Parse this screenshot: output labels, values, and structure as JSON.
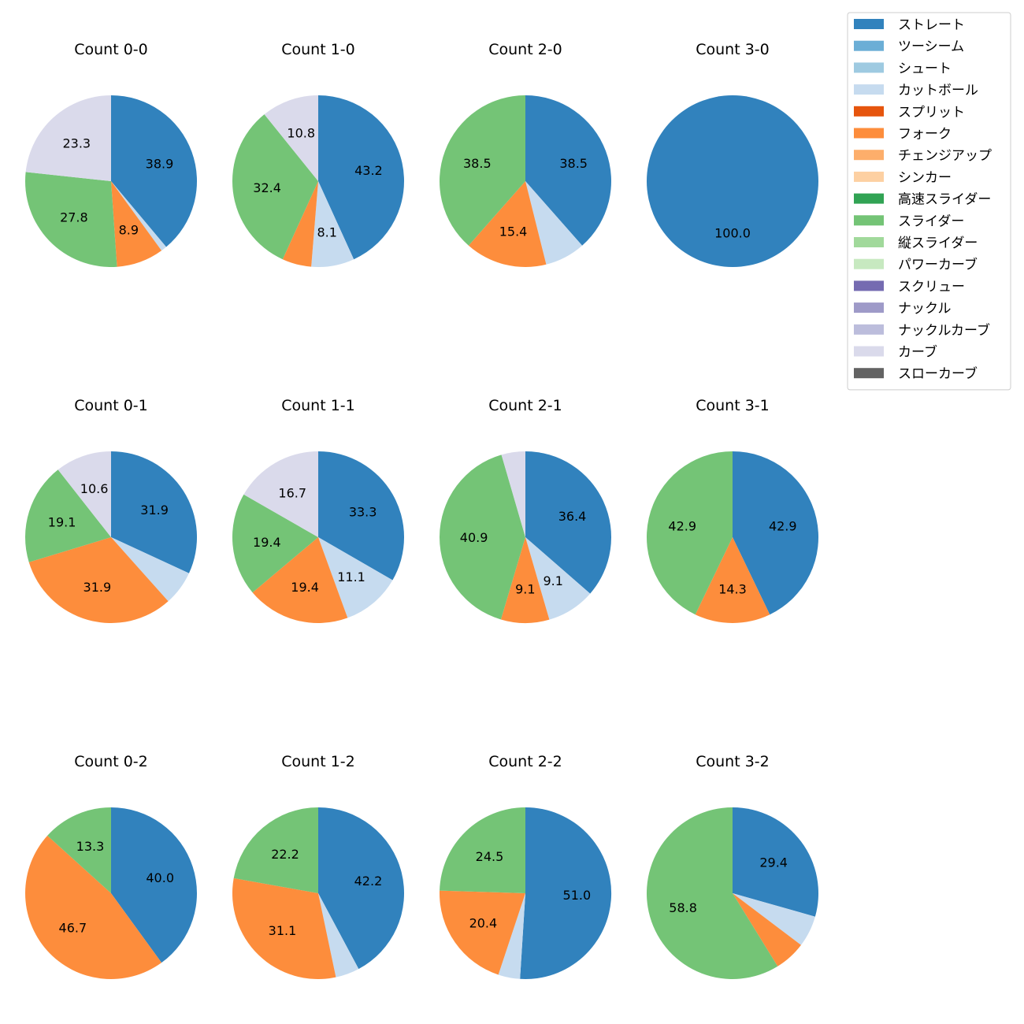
{
  "chart_data": {
    "type": "pie",
    "legend": {
      "placement": "top-right",
      "entries": [
        {
          "name": "ストレート",
          "color": "#3182bd"
        },
        {
          "name": "ツーシーム",
          "color": "#6baed6"
        },
        {
          "name": "シュート",
          "color": "#9ecae1"
        },
        {
          "name": "カットボール",
          "color": "#c6dbef"
        },
        {
          "name": "スプリット",
          "color": "#e6550d"
        },
        {
          "name": "フォーク",
          "color": "#fd8d3c"
        },
        {
          "name": "チェンジアップ",
          "color": "#fdae6b"
        },
        {
          "name": "シンカー",
          "color": "#fdd0a2"
        },
        {
          "name": "高速スライダー",
          "color": "#31a354"
        },
        {
          "name": "スライダー",
          "color": "#74c476"
        },
        {
          "name": "縦スライダー",
          "color": "#a1d99b"
        },
        {
          "name": "パワーカーブ",
          "color": "#c7e9c0"
        },
        {
          "name": "スクリュー",
          "color": "#756bb1"
        },
        {
          "name": "ナックル",
          "color": "#9e9ac8"
        },
        {
          "name": "ナックルカーブ",
          "color": "#bcbddc"
        },
        {
          "name": "カーブ",
          "color": "#dadaeb"
        },
        {
          "name": "スローカーブ",
          "color": "#636363"
        }
      ]
    },
    "pies": [
      {
        "title": "Count 0-0",
        "slices": [
          {
            "name": "ストレート",
            "value": 38.9,
            "label": "38.9"
          },
          {
            "name": "カットボール",
            "value": 1.1,
            "label": ""
          },
          {
            "name": "フォーク",
            "value": 8.9,
            "label": "8.9"
          },
          {
            "name": "スライダー",
            "value": 27.8,
            "label": "27.8"
          },
          {
            "name": "カーブ",
            "value": 23.3,
            "label": "23.3"
          }
        ]
      },
      {
        "title": "Count 1-0",
        "slices": [
          {
            "name": "ストレート",
            "value": 43.2,
            "label": "43.2"
          },
          {
            "name": "カットボール",
            "value": 8.1,
            "label": "8.1"
          },
          {
            "name": "フォーク",
            "value": 5.5,
            "label": ""
          },
          {
            "name": "スライダー",
            "value": 32.4,
            "label": "32.4"
          },
          {
            "name": "カーブ",
            "value": 10.8,
            "label": "10.8"
          }
        ]
      },
      {
        "title": "Count 2-0",
        "slices": [
          {
            "name": "ストレート",
            "value": 38.5,
            "label": "38.5"
          },
          {
            "name": "カットボール",
            "value": 7.6,
            "label": ""
          },
          {
            "name": "フォーク",
            "value": 15.4,
            "label": "15.4"
          },
          {
            "name": "スライダー",
            "value": 38.5,
            "label": "38.5"
          }
        ]
      },
      {
        "title": "Count 3-0",
        "slices": [
          {
            "name": "ストレート",
            "value": 100.0,
            "label": "100.0"
          }
        ]
      },
      {
        "title": "Count 0-1",
        "slices": [
          {
            "name": "ストレート",
            "value": 31.9,
            "label": "31.9"
          },
          {
            "name": "カットボール",
            "value": 6.5,
            "label": ""
          },
          {
            "name": "フォーク",
            "value": 31.9,
            "label": "31.9"
          },
          {
            "name": "スライダー",
            "value": 19.1,
            "label": "19.1"
          },
          {
            "name": "カーブ",
            "value": 10.6,
            "label": "10.6"
          }
        ]
      },
      {
        "title": "Count 1-1",
        "slices": [
          {
            "name": "ストレート",
            "value": 33.3,
            "label": "33.3"
          },
          {
            "name": "カットボール",
            "value": 11.1,
            "label": "11.1"
          },
          {
            "name": "フォーク",
            "value": 19.4,
            "label": "19.4"
          },
          {
            "name": "スライダー",
            "value": 19.4,
            "label": "19.4"
          },
          {
            "name": "カーブ",
            "value": 16.7,
            "label": "16.7"
          }
        ]
      },
      {
        "title": "Count 2-1",
        "slices": [
          {
            "name": "ストレート",
            "value": 36.4,
            "label": "36.4"
          },
          {
            "name": "カットボール",
            "value": 9.1,
            "label": "9.1"
          },
          {
            "name": "フォーク",
            "value": 9.1,
            "label": "9.1"
          },
          {
            "name": "スライダー",
            "value": 40.9,
            "label": "40.9"
          },
          {
            "name": "カーブ",
            "value": 4.5,
            "label": ""
          }
        ]
      },
      {
        "title": "Count 3-1",
        "slices": [
          {
            "name": "ストレート",
            "value": 42.9,
            "label": "42.9"
          },
          {
            "name": "フォーク",
            "value": 14.3,
            "label": "14.3"
          },
          {
            "name": "スライダー",
            "value": 42.9,
            "label": "42.9"
          }
        ]
      },
      {
        "title": "Count 0-2",
        "slices": [
          {
            "name": "ストレート",
            "value": 40.0,
            "label": "40.0"
          },
          {
            "name": "フォーク",
            "value": 46.7,
            "label": "46.7"
          },
          {
            "name": "スライダー",
            "value": 13.3,
            "label": "13.3"
          }
        ]
      },
      {
        "title": "Count 1-2",
        "slices": [
          {
            "name": "ストレート",
            "value": 42.2,
            "label": "42.2"
          },
          {
            "name": "カットボール",
            "value": 4.5,
            "label": ""
          },
          {
            "name": "フォーク",
            "value": 31.1,
            "label": "31.1"
          },
          {
            "name": "スライダー",
            "value": 22.2,
            "label": "22.2"
          }
        ]
      },
      {
        "title": "Count 2-2",
        "slices": [
          {
            "name": "ストレート",
            "value": 51.0,
            "label": "51.0"
          },
          {
            "name": "カットボール",
            "value": 4.1,
            "label": ""
          },
          {
            "name": "フォーク",
            "value": 20.4,
            "label": "20.4"
          },
          {
            "name": "スライダー",
            "value": 24.5,
            "label": "24.5"
          }
        ]
      },
      {
        "title": "Count 3-2",
        "slices": [
          {
            "name": "ストレート",
            "value": 29.4,
            "label": "29.4"
          },
          {
            "name": "カットボール",
            "value": 5.9,
            "label": ""
          },
          {
            "name": "フォーク",
            "value": 5.9,
            "label": ""
          },
          {
            "name": "スライダー",
            "value": 58.8,
            "label": "58.8"
          }
        ]
      }
    ]
  }
}
